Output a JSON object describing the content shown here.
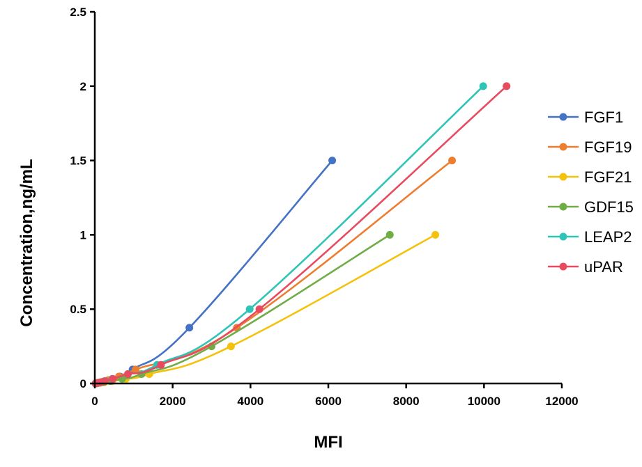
{
  "chart_data": {
    "type": "line",
    "xlabel": "MFI",
    "ylabel": "Concentration,ng/mL",
    "xlim": [
      0,
      12000
    ],
    "ylim": [
      0,
      2.5
    ],
    "x_ticks": [
      "0",
      "2000",
      "4000",
      "6000",
      "8000",
      "10000",
      "12000"
    ],
    "y_ticks": [
      "0",
      "0.5",
      "1",
      "1.5",
      "2",
      "2.5"
    ],
    "grid": false,
    "legend_position": "right",
    "series": [
      {
        "name": "FGF1",
        "color": "#4472C4",
        "points": [
          [
            30,
            0
          ],
          [
            80,
            0.003
          ],
          [
            150,
            0.006
          ],
          [
            230,
            0.012
          ],
          [
            380,
            0.023
          ],
          [
            650,
            0.047
          ],
          [
            970,
            0.094
          ],
          [
            2430,
            0.375
          ],
          [
            6100,
            1.5
          ]
        ]
      },
      {
        "name": "FGF19",
        "color": "#ED7D31",
        "points": [
          [
            20,
            0
          ],
          [
            60,
            0.003
          ],
          [
            110,
            0.006
          ],
          [
            200,
            0.012
          ],
          [
            350,
            0.023
          ],
          [
            620,
            0.047
          ],
          [
            1050,
            0.094
          ],
          [
            3650,
            0.375
          ],
          [
            9180,
            1.5
          ]
        ]
      },
      {
        "name": "FGF21",
        "color": "#F4C20D",
        "points": [
          [
            20,
            0
          ],
          [
            70,
            0.002
          ],
          [
            140,
            0.004
          ],
          [
            250,
            0.008
          ],
          [
            450,
            0.016
          ],
          [
            800,
            0.031
          ],
          [
            1400,
            0.063
          ],
          [
            3500,
            0.25
          ],
          [
            8750,
            1.0
          ]
        ]
      },
      {
        "name": "GDF15",
        "color": "#70AD47",
        "points": [
          [
            20,
            0
          ],
          [
            60,
            0.002
          ],
          [
            120,
            0.004
          ],
          [
            220,
            0.008
          ],
          [
            400,
            0.016
          ],
          [
            700,
            0.031
          ],
          [
            1200,
            0.063
          ],
          [
            3000,
            0.25
          ],
          [
            7580,
            1.0
          ]
        ]
      },
      {
        "name": "LEAP2",
        "color": "#2EC4B6",
        "points": [
          [
            20,
            0
          ],
          [
            70,
            0.004
          ],
          [
            140,
            0.008
          ],
          [
            250,
            0.016
          ],
          [
            450,
            0.031
          ],
          [
            850,
            0.063
          ],
          [
            1600,
            0.125
          ],
          [
            3980,
            0.5
          ],
          [
            9980,
            2.0
          ]
        ]
      },
      {
        "name": "uPAR",
        "color": "#E84A5F",
        "points": [
          [
            20,
            0
          ],
          [
            70,
            0.004
          ],
          [
            150,
            0.008
          ],
          [
            260,
            0.016
          ],
          [
            460,
            0.031
          ],
          [
            850,
            0.063
          ],
          [
            1700,
            0.125
          ],
          [
            4230,
            0.5
          ],
          [
            10580,
            2.0
          ]
        ]
      }
    ]
  }
}
